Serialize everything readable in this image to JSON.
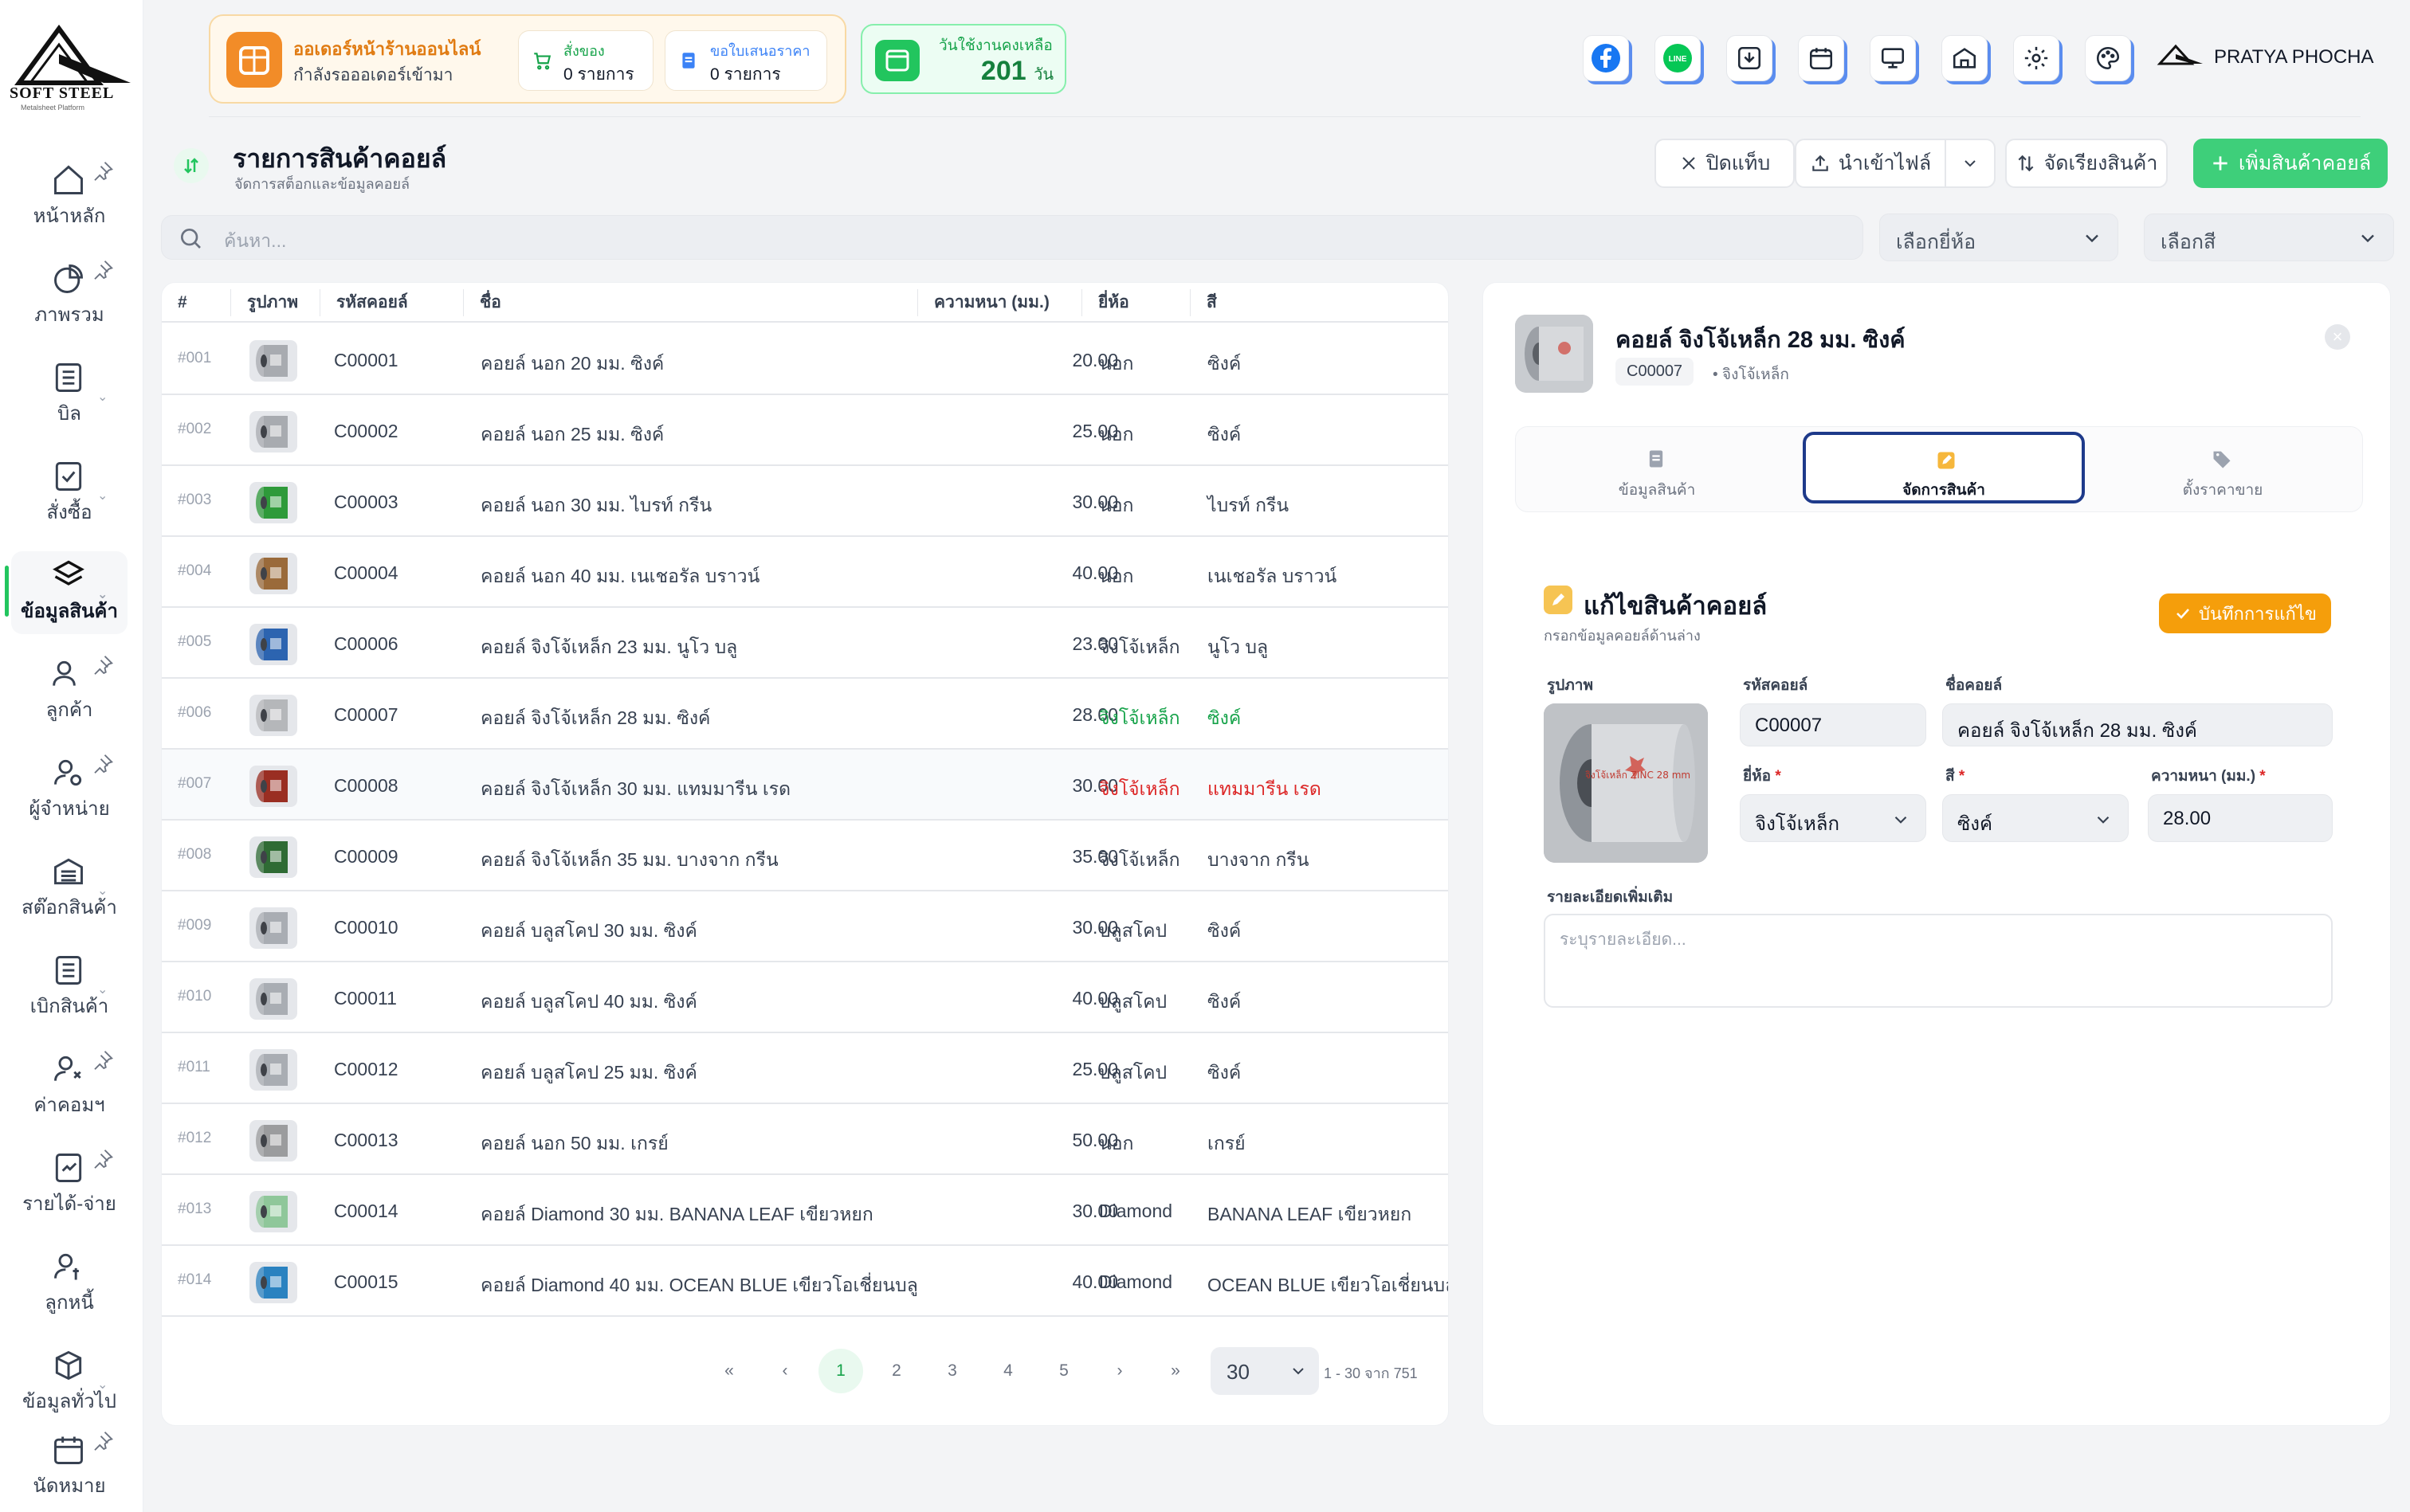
{
  "brand": {
    "name": "SOFT STEEL",
    "tagline": "Metalsheet Platform"
  },
  "sidebar": {
    "items": [
      {
        "label": "หน้าหลัก",
        "icon": "home-icon"
      },
      {
        "label": "ภาพรวม",
        "icon": "pie-chart-icon"
      },
      {
        "label": "บิล",
        "icon": "list-icon"
      },
      {
        "label": "สั่งซื้อ",
        "icon": "clipboard-check-icon"
      },
      {
        "label": "ข้อมูลสินค้า",
        "icon": "layers-icon"
      },
      {
        "label": "ลูกค้า",
        "icon": "users-icon"
      },
      {
        "label": "ผู้จำหน่าย",
        "icon": "supplier-icon"
      },
      {
        "label": "สต๊อกสินค้า",
        "icon": "warehouse-icon"
      },
      {
        "label": "เบิกสินค้า",
        "icon": "list-icon"
      },
      {
        "label": "ค่าคอมฯ",
        "icon": "user-commission-icon"
      },
      {
        "label": "รายได้-จ่าย",
        "icon": "income-icon"
      },
      {
        "label": "ลูกหนี้",
        "icon": "debtor-icon"
      },
      {
        "label": "ข้อมูลทั่วไป",
        "icon": "box-icon"
      },
      {
        "label": "นัดหมาย",
        "icon": "calendar-icon"
      }
    ]
  },
  "header": {
    "orders_title": "ออเดอร์หน้าร้านออนไลน์",
    "orders_sub": "กำลังรอออเดอร์เข้ามา",
    "cart_title": "สั่งของ",
    "cart_value": "0 รายการ",
    "quote_title": "ขอใบเสนอราคา",
    "quote_value": "0 รายการ",
    "days_title": "วันใช้งานคงเหลือ",
    "days_value": "201",
    "days_unit": "วัน",
    "user_name": "PRATYA PHOCHA"
  },
  "page": {
    "title": "รายการสินค้าคอยล์",
    "subtitle": "จัดการสต็อกและข้อมูลคอยล์",
    "close_tab": "ปิดแท็บ",
    "import_file": "นำเข้าไฟล์",
    "sort_products": "จัดเรียงสินค้า",
    "add_coil": "เพิ่มสินค้าคอยล์",
    "search_placeholder": "ค้นหา...",
    "brand_select": "เลือกยี่ห้อ",
    "color_select": "เลือกสี"
  },
  "table": {
    "headers": [
      "#",
      "รูปภาพ",
      "รหัสคอยล์",
      "ชื่อ",
      "ความหนา (มม.)",
      "ยี่ห้อ",
      "สี"
    ],
    "rows": [
      {
        "idx": "#001",
        "code": "C00001",
        "name": "คอยล์ นอก 20 มม. ซิงค์",
        "thk": "20.00",
        "brand": "นอก",
        "color": "ซิงค์",
        "swatch": "#a8abb0"
      },
      {
        "idx": "#002",
        "code": "C00002",
        "name": "คอยล์ นอก 25 มม. ซิงค์",
        "thk": "25.00",
        "brand": "นอก",
        "color": "ซิงค์",
        "swatch": "#a8abb0"
      },
      {
        "idx": "#003",
        "code": "C00003",
        "name": "คอยล์ นอก 30 มม. ไบรท์ กรีน",
        "thk": "30.00",
        "brand": "นอก",
        "color": "ไบรท์ กรีน",
        "swatch": "#2e9a3a"
      },
      {
        "idx": "#004",
        "code": "C00004",
        "name": "คอยล์ นอก 40 มม. เนเชอรัล บราวน์",
        "thk": "40.00",
        "brand": "นอก",
        "color": "เนเชอรัล บราวน์",
        "swatch": "#9a6a3a"
      },
      {
        "idx": "#005",
        "code": "C00006",
        "name": "คอยล์ จิงโจ้เหล็ก 23 มม. นูโว บลู",
        "thk": "23.00",
        "brand": "จิงโจ้เหล็ก",
        "color": "นูโว บลู",
        "swatch": "#2c64b0"
      },
      {
        "idx": "#006",
        "code": "C00007",
        "name": "คอยล์ จิงโจ้เหล็ก 28 มม. ซิงค์",
        "thk": "28.00",
        "brand": "จิงโจ้เหล็ก",
        "color": "ซิงค์",
        "swatch": "#b5b7ba",
        "tone": "grn"
      },
      {
        "idx": "#007",
        "code": "C00008",
        "name": "คอยล์ จิงโจ้เหล็ก 30 มม. แทมมารีน เรด",
        "thk": "30.00",
        "brand": "จิงโจ้เหล็ก",
        "color": "แทมมารีน เรด",
        "swatch": "#9a2e22",
        "tone": "red"
      },
      {
        "idx": "#008",
        "code": "C00009",
        "name": "คอยล์ จิงโจ้เหล็ก 35 มม. บางจาก กรีน",
        "thk": "35.00",
        "brand": "จิงโจ้เหล็ก",
        "color": "บางจาก กรีน",
        "swatch": "#2f6b34"
      },
      {
        "idx": "#009",
        "code": "C00010",
        "name": "คอยล์ บลูสโคป 30 มม. ซิงค์",
        "thk": "30.00",
        "brand": "บลูสโคป",
        "color": "ซิงค์",
        "swatch": "#a9adb3"
      },
      {
        "idx": "#010",
        "code": "C00011",
        "name": "คอยล์ บลูสโคป 40 มม. ซิงค์",
        "thk": "40.00",
        "brand": "บลูสโคป",
        "color": "ซิงค์",
        "swatch": "#a9adb3"
      },
      {
        "idx": "#011",
        "code": "C00012",
        "name": "คอยล์ บลูสโคป 25 มม. ซิงค์",
        "thk": "25.00",
        "brand": "บลูสโคป",
        "color": "ซิงค์",
        "swatch": "#a9adb3"
      },
      {
        "idx": "#012",
        "code": "C00013",
        "name": "คอยล์ นอก 50 มม. เกรย์",
        "thk": "50.00",
        "brand": "นอก",
        "color": "เกรย์",
        "swatch": "#9b9c9e"
      },
      {
        "idx": "#013",
        "code": "C00014",
        "name": "คอยล์ Diamond 30 มม. BANANA LEAF เขียวหยก",
        "thk": "30.00",
        "brand": "Diamond",
        "color": "BANANA LEAF เขียวหยก",
        "swatch": "#8fc79a"
      },
      {
        "idx": "#014",
        "code": "C00015",
        "name": "คอยล์ Diamond 40 มม. OCEAN BLUE เขียวโอเชี่ยนบลู",
        "thk": "40.00",
        "brand": "Diamond",
        "color": "OCEAN BLUE เขียวโอเชี่ยนบลู",
        "swatch": "#2a82c0"
      }
    ]
  },
  "pagination": {
    "pages": [
      "1",
      "2",
      "3",
      "4",
      "5"
    ],
    "page_size": "30",
    "info": "1 - 30 จาก 751"
  },
  "detail": {
    "title": "คอยล์ จิงโจ้เหล็ก 28 มม. ซิงค์",
    "code": "C00007",
    "brand_meta": "• จิงโจ้เหล็ก",
    "tabs": [
      "ข้อมูลสินค้า",
      "จัดการสินค้า",
      "ตั้งราคาขาย"
    ],
    "edit_title": "แก้ไขสินค้าคอยล์",
    "edit_sub": "กรอกข้อมูลคอยล์ด้านล่าง",
    "save_label": "บันทึกการแก้ไข",
    "image_label": "รูปภาพ",
    "code_label": "รหัสคอยล์",
    "code_value": "C00007",
    "name_label": "ชื่อคอยล์",
    "name_value": "คอยล์ จิงโจ้เหล็ก 28 มม. ซิงค์",
    "brand_label": "ยี่ห้อ",
    "brand_value": "จิงโจ้เหล็ก",
    "color_label": "สี",
    "color_value": "ซิงค์",
    "thk_label": "ความหนา (มม.)",
    "thk_value": "28.00",
    "notes_label": "รายละเอียดเพิ่มเติม",
    "notes_placeholder": "ระบุรายละเอียด...",
    "coil_print": "จิงโจ้เหล็ก ZINC 28 mm"
  },
  "colors": {
    "accent": "#3ecf7a",
    "orange": "#f28c28",
    "active_tab": "#1e3a8a",
    "save": "#f59e0b"
  }
}
